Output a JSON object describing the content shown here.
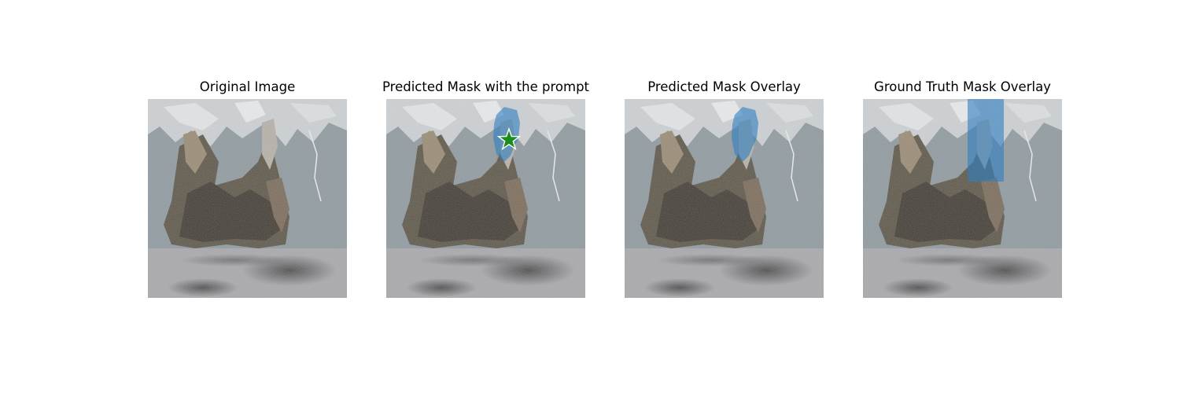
{
  "panels": [
    {
      "title": "Original Image",
      "overlay": "none",
      "prompt_star": false
    },
    {
      "title": "Predicted Mask with the prompt",
      "overlay": "predicted",
      "prompt_star": true
    },
    {
      "title": "Predicted Mask Overlay",
      "overlay": "predicted",
      "prompt_star": false
    },
    {
      "title": "Ground Truth Mask Overlay",
      "overlay": "ground-truth",
      "prompt_star": false
    }
  ],
  "colors": {
    "mask_fill": "#2f7fc1",
    "star_fill": "#1a8c1a",
    "star_stroke": "#ffffff"
  }
}
